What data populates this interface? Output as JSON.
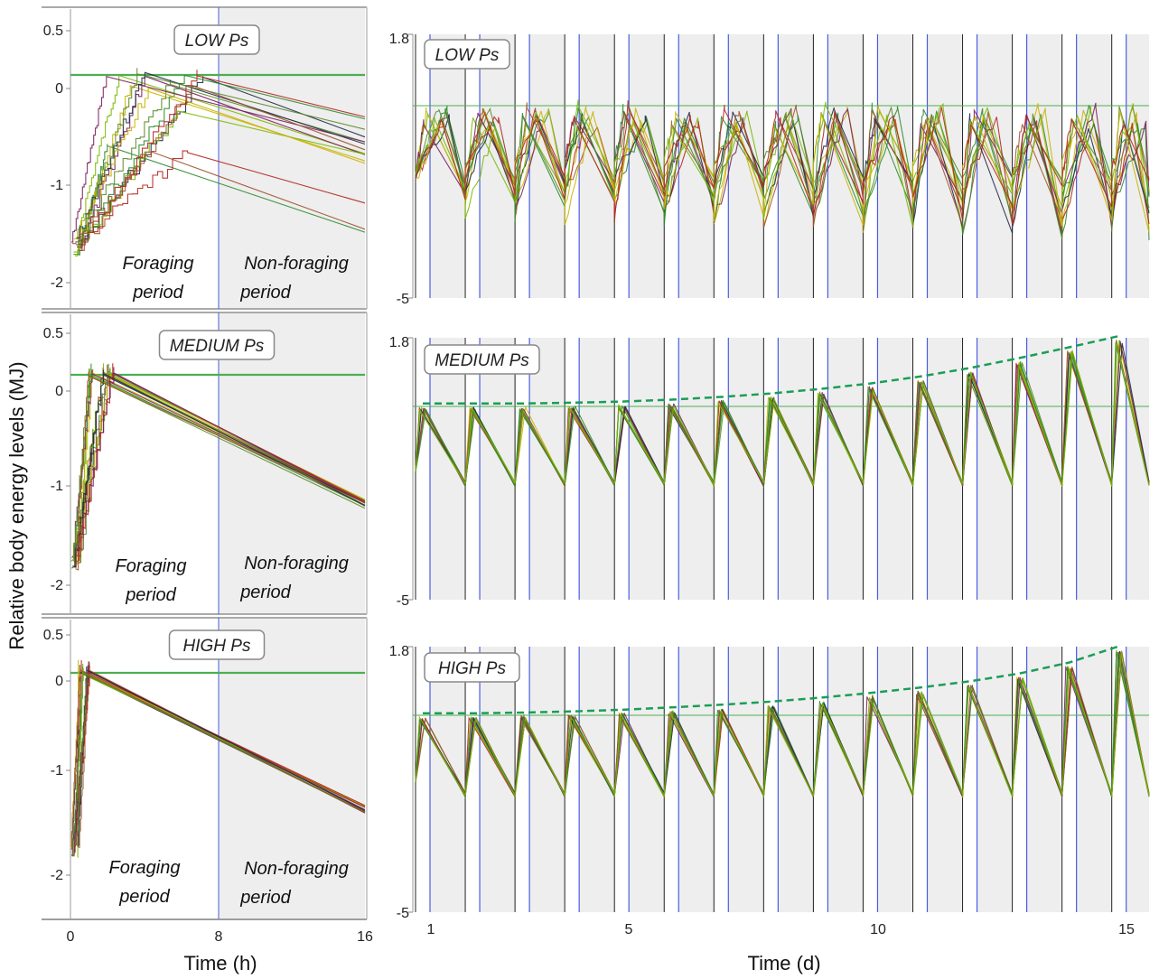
{
  "y_axis_label": "Relative body energy levels (MJ)",
  "left_x_label": "Time (h)",
  "right_x_label": "Time (d)",
  "left_panels": [
    {
      "label": "LOW Ps",
      "foraging_label_1": "Foraging",
      "foraging_label_2": "period",
      "nonforaging_label_1": "Non-foraging",
      "nonforaging_label_2": "period"
    },
    {
      "label": "MEDIUM Ps",
      "foraging_label_1": "Foraging",
      "foraging_label_2": "period",
      "nonforaging_label_1": "Non-foraging",
      "nonforaging_label_2": "period"
    },
    {
      "label": "HIGH Ps",
      "foraging_label_1": "Foraging",
      "foraging_label_2": "period",
      "nonforaging_label_1": "Non-foraging",
      "nonforaging_label_2": "period"
    }
  ],
  "right_panels": [
    {
      "label": "LOW Ps"
    },
    {
      "label": "MEDIUM Ps"
    },
    {
      "label": "HIGH Ps"
    }
  ],
  "colors": {
    "threshold": "#4caf50",
    "dashed_curve": "#1a9e55",
    "period_marker": "#4a5de0",
    "day_marker": "#222222",
    "shade": "#eeeeee",
    "series": [
      "#2e8b2e",
      "#7ab800",
      "#c8b400",
      "#b3261e",
      "#7a1f5c",
      "#1f2a44",
      "#5c8a2a",
      "#a0522d"
    ]
  },
  "chart_data": [
    {
      "type": "line",
      "panel": "left-low",
      "x": [
        0,
        8,
        16
      ],
      "xticks": [
        "0",
        "8",
        "16"
      ],
      "yticks": [
        "0.5",
        "0",
        "-1",
        "-2"
      ],
      "xlim": [
        0,
        16
      ],
      "ylim": [
        -2.15,
        0.55
      ],
      "threshold": 0.12,
      "foraging_end_h": 8,
      "series_summary": {
        "start_range": [
          -1.75,
          -1.55
        ],
        "peak_range": [
          -0.6,
          0.2
        ],
        "end_range": [
          -1.5,
          -0.6
        ]
      }
    },
    {
      "type": "line",
      "panel": "left-medium",
      "x": [
        0,
        8,
        16
      ],
      "xticks": [
        "0",
        "8",
        "16"
      ],
      "yticks": [
        "0.5",
        "0",
        "-1",
        "-2"
      ],
      "xlim": [
        0,
        16
      ],
      "ylim": [
        -2.15,
        0.55
      ],
      "threshold": 0.17,
      "foraging_end_h": 8,
      "series_summary": {
        "start_range": [
          -1.8,
          -1.6
        ],
        "peak": 0.17,
        "end_value": -1.2
      }
    },
    {
      "type": "line",
      "panel": "left-high",
      "x": [
        0,
        8,
        16
      ],
      "xticks": [
        "0",
        "8",
        "16"
      ],
      "yticks": [
        "0.5",
        "0",
        "-1",
        "-2"
      ],
      "xlim": [
        0,
        16
      ],
      "ylim": [
        -2.15,
        0.55
      ],
      "threshold": 0.07,
      "foraging_end_h": 8,
      "series_summary": {
        "start_range": [
          -1.85,
          -1.7
        ],
        "peak": 0.1,
        "end_value": -1.25
      }
    },
    {
      "type": "line",
      "panel": "right-low",
      "xticks": [
        "1",
        "5",
        "10",
        "15"
      ],
      "yticks": [
        "1.8",
        "-5"
      ],
      "xlim": [
        0.72,
        15.42
      ],
      "ylim": [
        -5,
        1.8
      ],
      "days": 15,
      "threshold": 0,
      "daily_peak": 0,
      "daily_trough_range": [
        -1.8,
        -4.0
      ]
    },
    {
      "type": "line",
      "panel": "right-medium",
      "xticks": [
        "1",
        "5",
        "10",
        "15"
      ],
      "yticks": [
        "1.8",
        "-5"
      ],
      "xlim": [
        0.72,
        15.42
      ],
      "ylim": [
        -5,
        1.8
      ],
      "days": 15,
      "threshold": 0,
      "daily_peaks": [
        0.0,
        0.0,
        0.0,
        0.02,
        0.05,
        0.1,
        0.17,
        0.26,
        0.38,
        0.52,
        0.7,
        0.92,
        1.18,
        1.46,
        1.75
      ],
      "daily_trough": -2.0
    },
    {
      "type": "line",
      "panel": "right-high",
      "xticks": [
        "1",
        "5",
        "10",
        "15"
      ],
      "yticks": [
        "1.8",
        "-5"
      ],
      "xlim": [
        0.72,
        15.42
      ],
      "ylim": [
        -5,
        1.8
      ],
      "days": 15,
      "threshold": 0,
      "daily_peaks": [
        0.0,
        0.0,
        0.02,
        0.05,
        0.09,
        0.15,
        0.22,
        0.3,
        0.4,
        0.52,
        0.66,
        0.82,
        1.02,
        1.3,
        1.72
      ],
      "daily_trough": -2.1
    }
  ]
}
